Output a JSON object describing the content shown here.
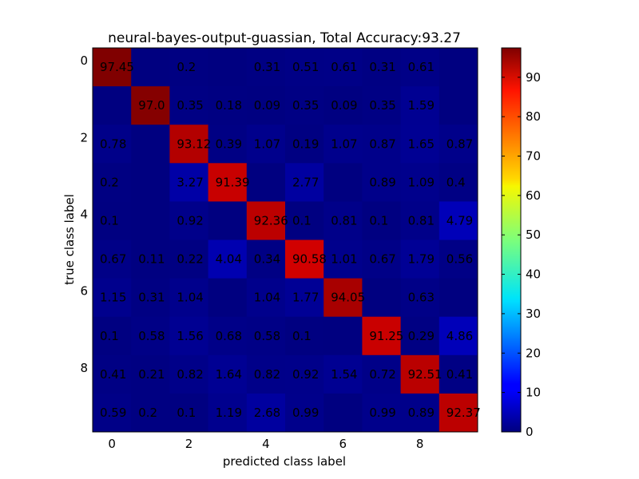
{
  "chart_data": {
    "type": "heatmap",
    "title": "neural-bayes-output-guassian, Total Accuracy:93.27",
    "xlabel": "predicted class label",
    "ylabel": "true class label",
    "x_ticks": [
      "0",
      "2",
      "4",
      "6",
      "8"
    ],
    "y_ticks": [
      "0",
      "2",
      "4",
      "6",
      "8"
    ],
    "colorbar": {
      "ticks": [
        "0",
        "10",
        "20",
        "30",
        "40",
        "50",
        "60",
        "70",
        "80",
        "90"
      ],
      "range": [
        0,
        97.45
      ],
      "colormap": "jet"
    },
    "rows": 10,
    "cols": 10,
    "values": [
      [
        97.45,
        0,
        0.2,
        0,
        0.31,
        0.51,
        0.61,
        0.31,
        0.61,
        0
      ],
      [
        0,
        97.0,
        0.35,
        0.18,
        0.09,
        0.35,
        0.09,
        0.35,
        1.59,
        0
      ],
      [
        0.78,
        0,
        93.12,
        0.39,
        1.07,
        0.19,
        1.07,
        0.87,
        1.65,
        0.87
      ],
      [
        0.2,
        0,
        3.27,
        91.39,
        0,
        2.77,
        0,
        0.89,
        1.09,
        0.4
      ],
      [
        0.1,
        0,
        0.92,
        0,
        92.36,
        0.1,
        0.81,
        0.1,
        0.81,
        4.79
      ],
      [
        0.67,
        0.11,
        0.22,
        4.04,
        0.34,
        90.58,
        1.01,
        0.67,
        1.79,
        0.56
      ],
      [
        1.15,
        0.31,
        1.04,
        0,
        1.04,
        1.77,
        94.05,
        0,
        0.63,
        0
      ],
      [
        0.1,
        0.58,
        1.56,
        0.68,
        0.58,
        0.1,
        0,
        91.25,
        0.29,
        4.86
      ],
      [
        0.41,
        0.21,
        0.82,
        1.64,
        0.82,
        0.92,
        1.54,
        0.72,
        92.51,
        0.41
      ],
      [
        0.59,
        0.2,
        0.1,
        1.19,
        2.68,
        0.99,
        0,
        0.99,
        0.89,
        92.37
      ]
    ],
    "cell_labels": [
      [
        "97.45",
        "",
        "0.2",
        "",
        "0.31",
        "0.51",
        "0.61",
        "0.31",
        "0.61",
        ""
      ],
      [
        "",
        "97.0",
        "0.35",
        "0.18",
        "0.09",
        "0.35",
        "0.09",
        "0.35",
        "1.59",
        ""
      ],
      [
        "0.78",
        "",
        "93.12",
        "0.39",
        "1.07",
        "0.19",
        "1.07",
        "0.87",
        "1.65",
        "0.87"
      ],
      [
        "0.2",
        "",
        "3.27",
        "91.39",
        "",
        "2.77",
        "",
        "0.89",
        "1.09",
        "0.4"
      ],
      [
        "0.1",
        "",
        "0.92",
        "",
        "92.36",
        "0.1",
        "0.81",
        "0.1",
        "0.81",
        "4.79"
      ],
      [
        "0.67",
        "0.11",
        "0.22",
        "4.04",
        "0.34",
        "90.58",
        "1.01",
        "0.67",
        "1.79",
        "0.56"
      ],
      [
        "1.15",
        "0.31",
        "1.04",
        "",
        "1.04",
        "1.77",
        "94.05",
        "",
        "0.63",
        ""
      ],
      [
        "0.1",
        "0.58",
        "1.56",
        "0.68",
        "0.58",
        "0.1",
        "",
        "91.25",
        "0.29",
        "4.86"
      ],
      [
        "0.41",
        "0.21",
        "0.82",
        "1.64",
        "0.82",
        "0.92",
        "1.54",
        "0.72",
        "92.51",
        "0.41"
      ],
      [
        "0.59",
        "0.2",
        "0.1",
        "1.19",
        "2.68",
        "0.99",
        "",
        "0.99",
        "0.89",
        "92.37"
      ]
    ]
  }
}
